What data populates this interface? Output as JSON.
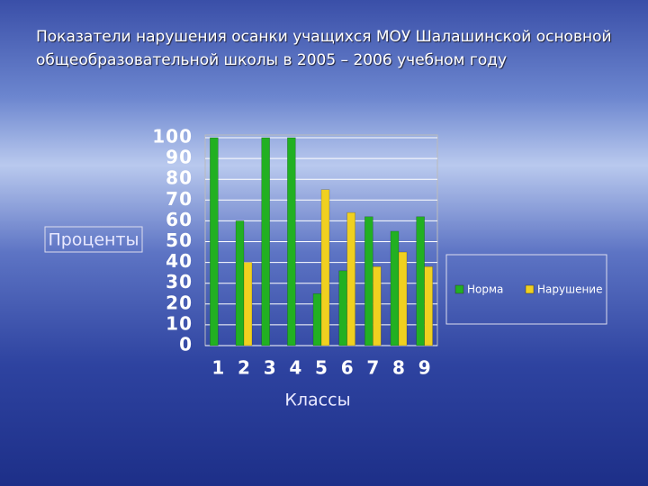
{
  "chart_data": {
    "type": "bar",
    "title": "Показатели нарушения осанки учащихся МОУ Шалашинской основной общеобразовательной школы в 2005 – 2006 учебном году",
    "x_label": "Классы",
    "y_label": "Проценты",
    "categories": [
      "1",
      "2",
      "3",
      "4",
      "5",
      "6",
      "7",
      "8",
      "9"
    ],
    "series": [
      {
        "name": "Норма",
        "color": "#22b022",
        "values": [
          100,
          60,
          100,
          100,
          25,
          36,
          62,
          55,
          62
        ]
      },
      {
        "name": "Нарушение",
        "color": "#f0d020",
        "values": [
          0,
          40,
          0,
          0,
          75,
          64,
          38,
          45,
          38
        ]
      }
    ],
    "ylim": [
      0,
      100
    ],
    "yticks": [
      0,
      10,
      20,
      30,
      40,
      50,
      60,
      70,
      80,
      90,
      100
    ],
    "grid": true,
    "legend": "right"
  }
}
